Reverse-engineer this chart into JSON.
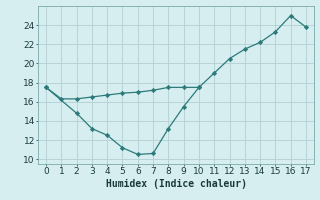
{
  "line1_x": [
    0,
    1,
    2,
    3,
    4,
    5,
    6,
    7,
    8,
    9,
    10
  ],
  "line1_y": [
    17.5,
    16.3,
    16.3,
    16.5,
    16.7,
    16.9,
    17.0,
    17.2,
    17.5,
    17.5,
    17.5
  ],
  "line2_x": [
    0,
    2,
    3,
    4,
    5,
    6,
    7,
    8,
    9,
    10,
    11,
    12,
    13,
    14,
    15,
    16,
    17
  ],
  "line2_y": [
    17.5,
    14.8,
    13.2,
    12.5,
    11.2,
    10.5,
    10.6,
    13.2,
    15.5,
    17.5,
    19.0,
    20.5,
    21.5,
    22.2,
    23.3,
    25.0,
    23.8
  ],
  "line_color": "#2d7a7a",
  "bg_color": "#d6eef0",
  "grid_color": "#b8d4d8",
  "xlabel": "Humidex (Indice chaleur)",
  "xlim": [
    -0.5,
    17.5
  ],
  "ylim": [
    9.5,
    26.0
  ],
  "yticks": [
    10,
    12,
    14,
    16,
    18,
    20,
    22,
    24
  ],
  "xticks": [
    0,
    1,
    2,
    3,
    4,
    5,
    6,
    7,
    8,
    9,
    10,
    11,
    12,
    13,
    14,
    15,
    16,
    17
  ],
  "xlabel_fontsize": 7,
  "tick_fontsize": 6.5
}
